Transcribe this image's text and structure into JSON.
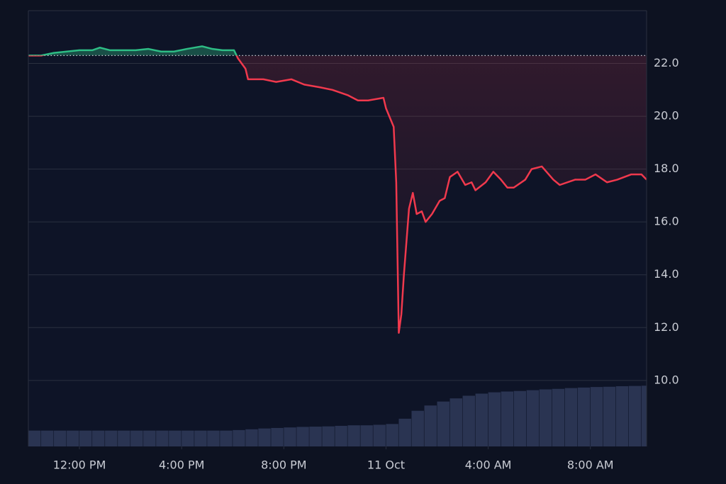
{
  "chart_data": {
    "type": "line",
    "x": [
      10.0,
      10.5,
      11.0,
      11.5,
      12.0,
      12.5,
      12.8,
      13.2,
      13.7,
      14.2,
      14.7,
      15.2,
      15.7,
      16.2,
      16.8,
      17.2,
      17.6,
      18.05,
      18.2,
      18.5,
      18.6,
      19.2,
      19.7,
      20.3,
      20.8,
      21.4,
      21.9,
      22.5,
      22.9,
      23.3,
      23.9,
      24.0,
      24.3,
      24.4,
      24.5,
      24.6,
      24.7,
      24.9,
      25.05,
      25.2,
      25.4,
      25.55,
      25.8,
      26.1,
      26.3,
      26.5,
      26.8,
      27.1,
      27.35,
      27.5,
      27.9,
      28.2,
      28.5,
      28.75,
      29.0,
      29.45,
      29.7,
      30.1,
      30.55,
      30.8,
      31.4,
      31.8,
      32.2,
      32.65,
      33.05,
      33.6,
      34.0,
      34.2
    ],
    "series": [
      {
        "values": [
          22.3,
          22.3,
          22.4,
          22.45,
          22.5,
          22.5,
          22.6,
          22.5,
          22.5,
          22.5,
          22.55,
          22.45,
          22.45,
          22.55,
          22.65,
          22.55,
          22.5,
          22.5,
          22.2,
          21.8,
          21.4,
          21.4,
          21.3,
          21.4,
          21.2,
          21.1,
          21.0,
          20.8,
          20.6,
          20.6,
          20.7,
          20.3,
          19.6,
          17.5,
          11.8,
          12.5,
          14.0,
          16.5,
          17.1,
          16.3,
          16.4,
          16.0,
          16.3,
          16.8,
          16.9,
          17.7,
          17.9,
          17.4,
          17.5,
          17.2,
          17.5,
          17.9,
          17.6,
          17.3,
          17.3,
          17.6,
          18.0,
          18.1,
          17.6,
          17.4,
          17.6,
          17.6,
          17.8,
          17.5,
          17.6,
          17.8,
          17.8,
          17.6
        ]
      }
    ],
    "baseline": 22.3,
    "color_above": "#2ebd85",
    "color_below": "#f0394d",
    "volume": {
      "color": "#2a3452",
      "x": [
        10,
        10.5,
        11,
        11.5,
        12,
        12.5,
        13,
        13.5,
        14,
        14.5,
        15,
        15.5,
        16,
        16.5,
        17,
        17.5,
        18,
        18.5,
        19,
        19.5,
        20,
        20.5,
        21,
        21.5,
        22,
        22.5,
        23,
        23.5,
        24,
        24.5,
        25,
        25.5,
        26,
        26.5,
        27,
        27.5,
        28,
        28.5,
        29,
        29.5,
        30,
        30.5,
        31,
        31.5,
        32,
        32.5,
        33,
        33.5,
        34
      ],
      "values": [
        8.1,
        8.1,
        8.1,
        8.1,
        8.1,
        8.1,
        8.1,
        8.1,
        8.1,
        8.1,
        8.1,
        8.1,
        8.1,
        8.1,
        8.1,
        8.1,
        8.12,
        8.15,
        8.18,
        8.2,
        8.22,
        8.24,
        8.25,
        8.26,
        8.28,
        8.3,
        8.3,
        8.32,
        8.35,
        8.55,
        8.85,
        9.05,
        9.2,
        9.32,
        9.42,
        9.5,
        9.55,
        9.58,
        9.6,
        9.63,
        9.66,
        9.68,
        9.71,
        9.73,
        9.75,
        9.76,
        9.78,
        9.79,
        9.8
      ]
    },
    "xlim": [
      10,
      34.2
    ],
    "xticks": [
      {
        "value": 12,
        "label": "12:00 PM"
      },
      {
        "value": 16,
        "label": "4:00 PM"
      },
      {
        "value": 20,
        "label": "8:00 PM"
      },
      {
        "value": 24,
        "label": "11 Oct"
      },
      {
        "value": 28,
        "label": "4:00 AM"
      },
      {
        "value": 32,
        "label": "8:00 AM"
      }
    ],
    "ylim": [
      7.5,
      24
    ],
    "yticks": [
      {
        "value": 10,
        "label": "10.0"
      },
      {
        "value": 12,
        "label": "12.0"
      },
      {
        "value": 14,
        "label": "14.0"
      },
      {
        "value": 16,
        "label": "16.0"
      },
      {
        "value": 18,
        "label": "18.0"
      },
      {
        "value": 20,
        "label": "20.0"
      },
      {
        "value": 22,
        "label": "22.0"
      }
    ],
    "grid": true
  }
}
